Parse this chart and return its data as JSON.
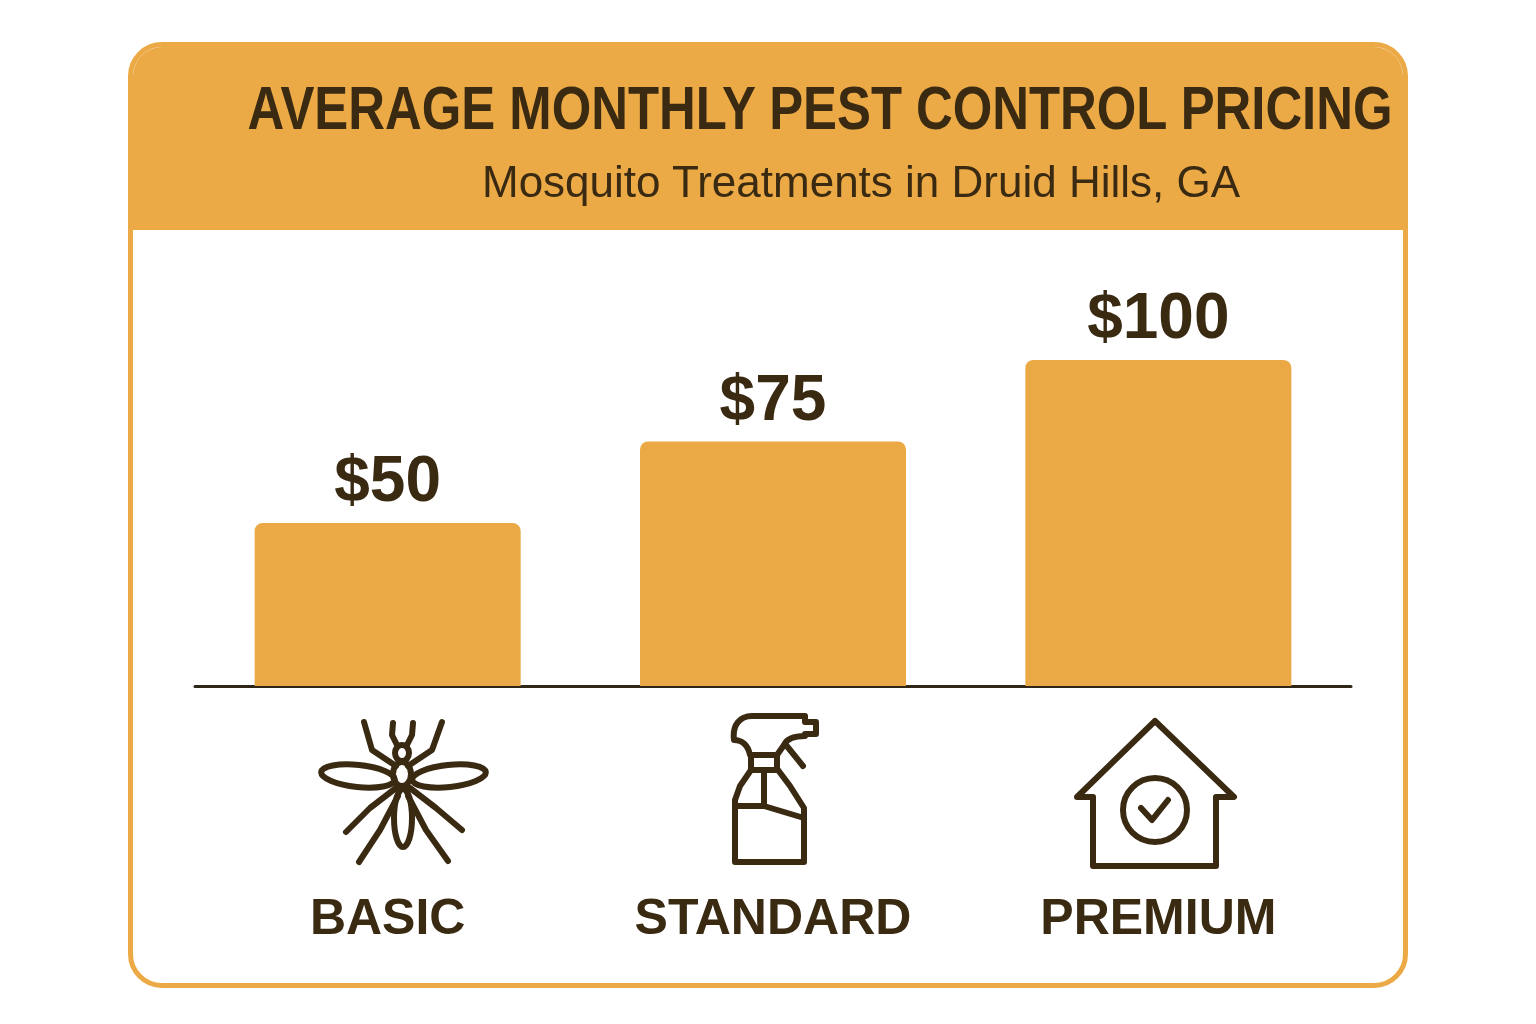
{
  "chart_data": {
    "type": "bar",
    "title": "AVERAGE MONTHLY PEST CONTROL PRICING",
    "subtitle": "Mosquito Treatments in Druid Hills, GA",
    "categories": [
      "BASIC",
      "STANDARD",
      "PREMIUM"
    ],
    "values": [
      50,
      75,
      100
    ],
    "value_labels": [
      "$50",
      "$75",
      "$100"
    ],
    "color": "#eba946",
    "tick_labels": "x"
  }
}
